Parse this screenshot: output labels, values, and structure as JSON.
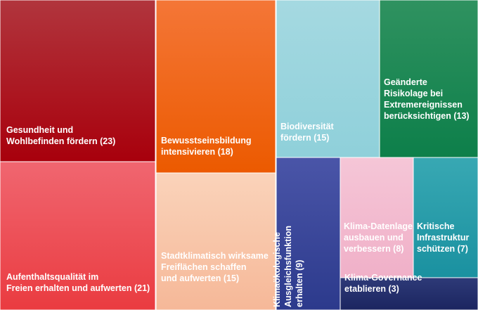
{
  "chart_data": {
    "type": "treemap",
    "title": "",
    "items": [
      {
        "id": "gesundheit",
        "lines": [
          "Gesundheit und",
          "Wohlbefinden fördern (23)"
        ],
        "value": 23,
        "color_top": "#b1353d",
        "color_bottom": "#a8000c",
        "text_color": "#ffffff"
      },
      {
        "id": "aufenthalt",
        "lines": [
          "Aufenthaltsqualität im",
          "Freien erhalten und aufwerten (21)"
        ],
        "value": 21,
        "color_top": "#f06670",
        "color_bottom": "#ea3b40",
        "text_color": "#ffffff"
      },
      {
        "id": "bewusstsein",
        "lines": [
          "Bewusstseinsbildung",
          "intensivieren (18)"
        ],
        "value": 18,
        "color_top": "#f47637",
        "color_bottom": "#ec5a00",
        "text_color": "#ffffff"
      },
      {
        "id": "stadtklima",
        "lines": [
          "Stadtklimatisch wirksame",
          "Freiflächen schaffen",
          "und aufwerten (15)"
        ],
        "value": 15,
        "color_top": "#fad3ba",
        "color_bottom": "#f6b898",
        "text_color": "#ffffff"
      },
      {
        "id": "biodiversitaet",
        "lines": [
          "Biodiversität",
          "fördern (15)"
        ],
        "value": 15,
        "color_top": "#a5d9e1",
        "color_bottom": "#8fd0da",
        "text_color": "#ffffff"
      },
      {
        "id": "risikolage",
        "lines": [
          "Geänderte",
          "Risikolage bei",
          "Extremereignissen",
          "berücksichtigen (13)"
        ],
        "value": 13,
        "color_top": "#2f9260",
        "color_bottom": "#0d7f4a",
        "text_color": "#ffffff"
      },
      {
        "id": "ausgleich",
        "lines": [
          "Klimaökologische",
          "Ausgleichsfunktion",
          "erhalten (9)"
        ],
        "value": 9,
        "color_top": "#4a55a8",
        "color_bottom": "#2c3a8c",
        "text_color": "#ffffff",
        "vertical": true
      },
      {
        "id": "datenlage",
        "lines": [
          "Klima-Datenlage",
          "ausbauen und",
          "verbessern (8)"
        ],
        "value": 8,
        "color_top": "#f5c6d7",
        "color_bottom": "#f0b0c8",
        "text_color": "#ffffff"
      },
      {
        "id": "infrastruktur",
        "lines": [
          "Kritische",
          "Infrastruktur",
          "schützen (7)"
        ],
        "value": 7,
        "color_top": "#38a8b3",
        "color_bottom": "#1a91a0",
        "text_color": "#ffffff"
      },
      {
        "id": "governance",
        "lines": [
          "Klima-Governance",
          "etablieren (3)"
        ],
        "value": 3,
        "color_top": "#2e3a78",
        "color_bottom": "#1b2560",
        "text_color": "#ffffff"
      }
    ]
  }
}
